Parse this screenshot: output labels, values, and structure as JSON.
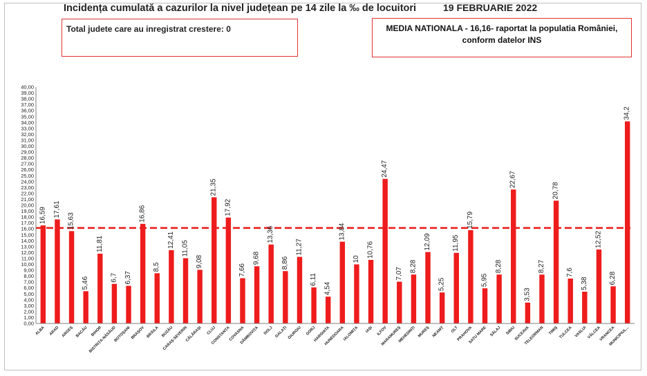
{
  "header": {
    "title": "Incidența cumulată a cazurilor la nivel județean pe 14 zile la ‰ de locuitori",
    "date": "19 FEBRUARIE 2022",
    "increase_box": "Total judete care au inregistrat crestere: 0",
    "national_line1": "MEDIA NATIONALA - 16,16-  raportat la populatia României,",
    "national_line2": "conform datelor INS"
  },
  "chart_data": {
    "type": "bar",
    "categories": [
      "ALBA",
      "ARAD",
      "ARGEȘ",
      "BACĂU",
      "BIHOR",
      "BISTRIȚA-NĂSĂUD",
      "BOTOȘANI",
      "BRAȘOV",
      "BRĂILA",
      "BUZĂU",
      "CARAȘ-SEVERIN",
      "CĂLĂRAȘI",
      "CLUJ",
      "CONSTANȚA",
      "COVASNA",
      "DÂMBOVIȚA",
      "DOLJ",
      "GALAȚI",
      "GIURGIU",
      "GORJ",
      "HARGHITA",
      "HUNEDOARA",
      "IALOMIȚA",
      "IAȘI",
      "ILFOV",
      "MARAMUREȘ",
      "MEHEDINȚI",
      "MUREȘ",
      "NEAMȚ",
      "OLT",
      "PRAHOVA",
      "SATU MARE",
      "SĂLAJ",
      "SIBIU",
      "SUCEAVA",
      "TELEORMAN",
      "TIMIȘ",
      "TULCEA",
      "VASLUI",
      "VÂLCEA",
      "VRANCEA",
      "MUNICIPIUL..."
    ],
    "values": [
      16.59,
      17.61,
      15.63,
      5.46,
      11.81,
      6.7,
      6.37,
      16.86,
      8.5,
      12.41,
      11.05,
      9.08,
      21.35,
      17.92,
      7.66,
      9.68,
      13.36,
      8.86,
      11.27,
      6.11,
      4.54,
      13.84,
      10,
      10.76,
      24.47,
      7.07,
      8.28,
      12.09,
      5.25,
      11.95,
      15.79,
      5.95,
      8.28,
      22.67,
      3.53,
      8.27,
      20.78,
      7.6,
      5.38,
      12.52,
      6.28,
      34.2
    ],
    "value_labels": [
      "16,59",
      "17,61",
      "15,63",
      "5,46",
      "11,81",
      "6,7",
      "6,37",
      "16,86",
      "8,5",
      "12,41",
      "11,05",
      "9,08",
      "21,35",
      "17,92",
      "7,66",
      "9,68",
      "13,36",
      "8,86",
      "11,27",
      "6,11",
      "4,54",
      "13,84",
      "10",
      "10,76",
      "24,47",
      "7,07",
      "8,28",
      "12,09",
      "5,25",
      "11,95",
      "15,79",
      "5,95",
      "8,28",
      "22,67",
      "3,53",
      "8,27",
      "20,78",
      "7,6",
      "5,38",
      "12,52",
      "6,28",
      "34,2"
    ],
    "ylim": [
      0,
      40
    ],
    "ytick_step": 1,
    "ytick_labels": [
      "0,00",
      "1,00",
      "2,00",
      "3,00",
      "4,00",
      "5,00",
      "6,00",
      "7,00",
      "8,00",
      "9,00",
      "10,00",
      "11,00",
      "12,00",
      "13,00",
      "14,00",
      "15,00",
      "16,00",
      "17,00",
      "18,00",
      "19,00",
      "20,00",
      "21,00",
      "22,00",
      "23,00",
      "24,00",
      "25,00",
      "26,00",
      "27,00",
      "28,00",
      "29,00",
      "30,00",
      "31,00",
      "32,00",
      "33,00",
      "34,00",
      "35,00",
      "36,00",
      "37,00",
      "38,00",
      "39,00",
      "40,00"
    ],
    "reference_line": 16.16,
    "colors": {
      "bar": "#ee1c1c",
      "reference": "#e81e1e",
      "axis": "#7f7f7f"
    }
  }
}
